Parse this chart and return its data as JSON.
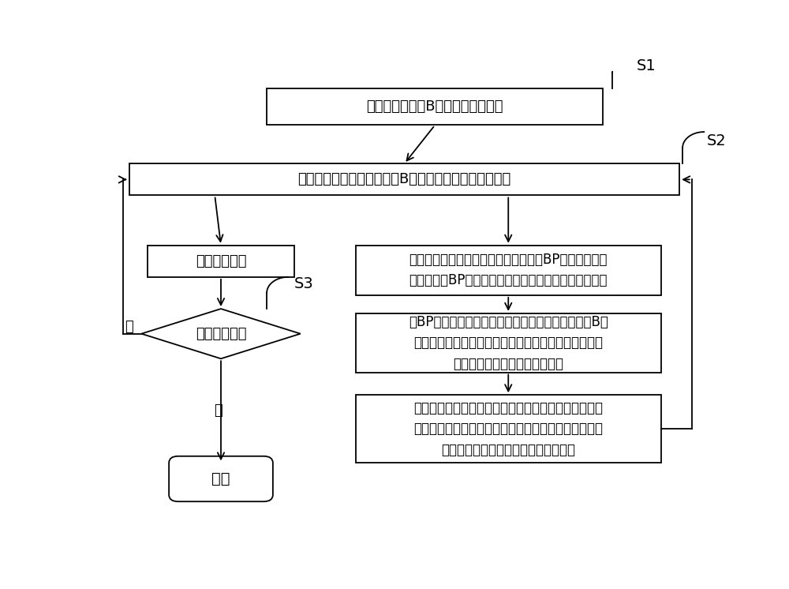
{
  "bg_color": "#ffffff",
  "line_color": "#000000",
  "box_fill": "#ffffff",
  "box_edge": "#000000",
  "font_size": 13,
  "s1_label": "S1",
  "s2_label": "S2",
  "s3_label": "S3",
  "box1_text": "获取拟合得到的B样条曲线节点矢量",
  "box2_text": "将当前节点的节点参数代入B样条曲线，求出实际插补点",
  "box3_text": "进行插补动作",
  "box4_text": "将当前节点的节点参数输入到训练好的BP神经网络插补\n模型，获取BP神经网络插补模型输出的节点参数预测值",
  "box5_text": "将BP神经网络插补模型输出的节点参数预测值代入B样\n条曲线，获取预测插补点，计算预测插补点与实际插补\n点的偏差与对应的反馈校正输出",
  "box6_text": "将反馈校正输出与原始加工轨迹曲线进行比较，利用牛\n顿搜索路径法，预测出下一次插补的节点参数，将预测\n出的节点参数作为当前节点的节点参数",
  "diamond_text": "是否插补完成",
  "end_text": "结束",
  "yes_label": "是",
  "no_label": "否"
}
